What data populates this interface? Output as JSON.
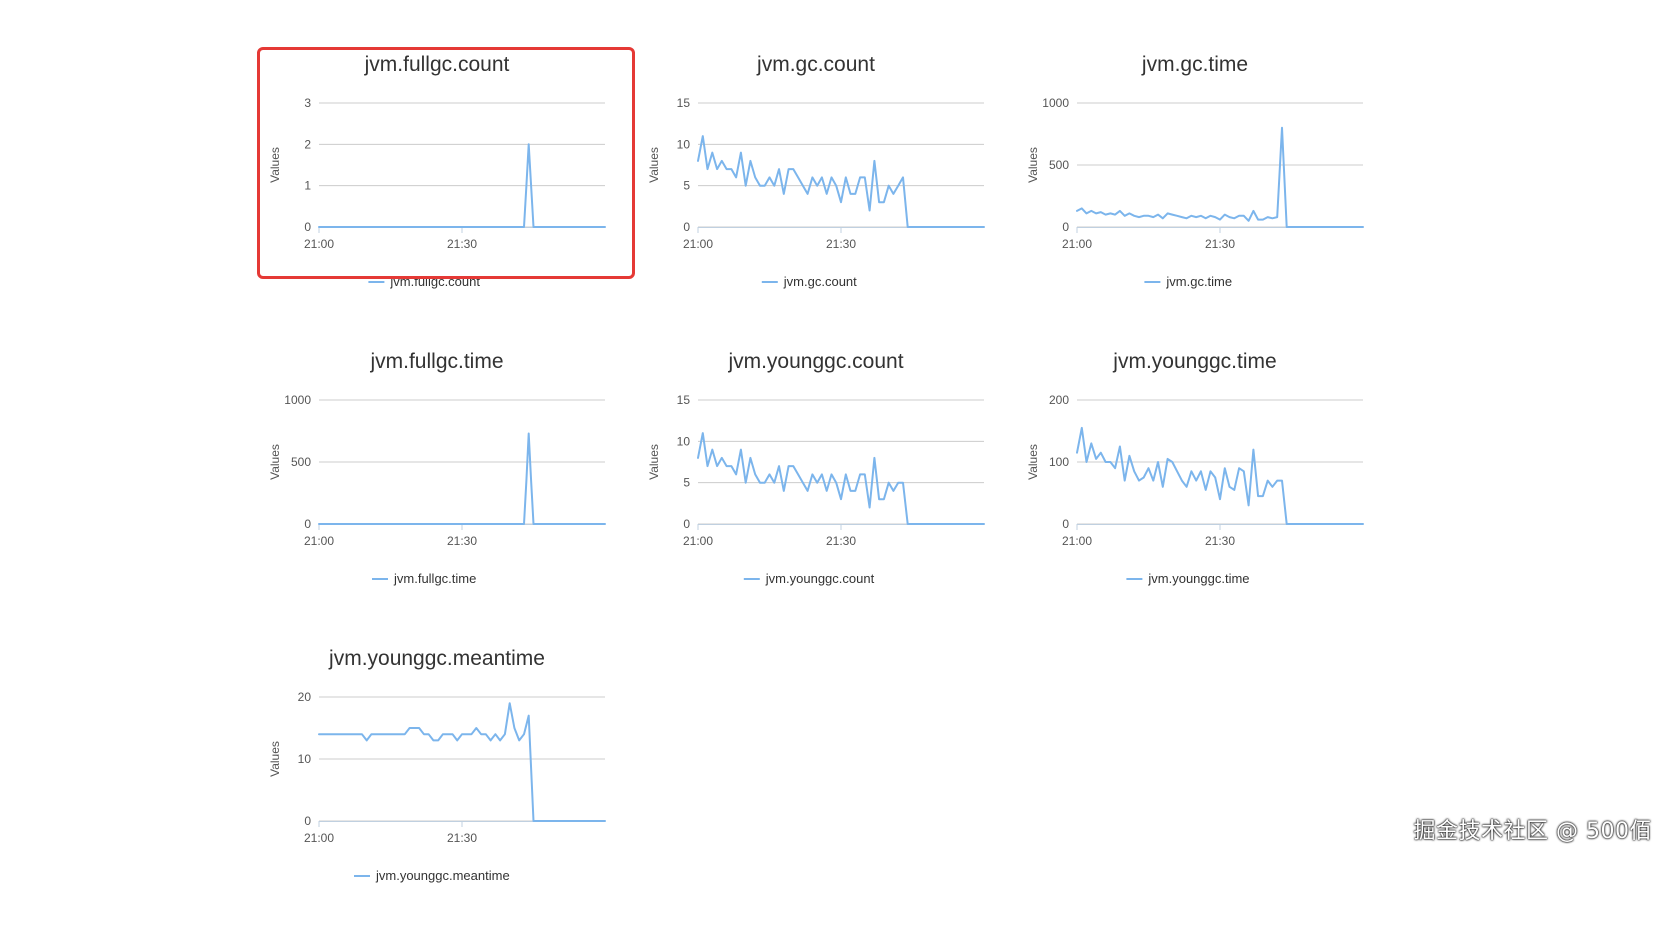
{
  "watermark": "掘金技术社区 @ 500佰",
  "colors": {
    "series": "#7cb5ec",
    "highlight": "#e53935",
    "grid": "#cccccc"
  },
  "chart_data": [
    {
      "type": "line",
      "name": "fullgc-count",
      "title": "jvm.fullgc.count",
      "ylabel": "Values",
      "ylim": [
        0,
        3
      ],
      "yticks": [
        0,
        1,
        2,
        3
      ],
      "xlim": [
        0,
        60
      ],
      "xticks": [
        {
          "x": 0,
          "label": "21:00"
        },
        {
          "x": 30,
          "label": "21:30"
        }
      ],
      "series": [
        {
          "name": "jvm.fullgc.count",
          "x": [
            0,
            1,
            2,
            3,
            4,
            5,
            6,
            7,
            8,
            9,
            10,
            11,
            12,
            13,
            14,
            15,
            16,
            17,
            18,
            19,
            20,
            21,
            22,
            23,
            24,
            25,
            26,
            27,
            28,
            29,
            30,
            31,
            32,
            33,
            34,
            35,
            36,
            37,
            38,
            39,
            40,
            41,
            42,
            43,
            43.5,
            44,
            44.5,
            45,
            46,
            47,
            48,
            49,
            50,
            51,
            52,
            53,
            54,
            55,
            56,
            57,
            58,
            59,
            60
          ],
          "values": [
            0,
            0,
            0,
            0,
            0,
            0,
            0,
            0,
            0,
            0,
            0,
            0,
            0,
            0,
            0,
            0,
            0,
            0,
            0,
            0,
            0,
            0,
            0,
            0,
            0,
            0,
            0,
            0,
            0,
            0,
            0,
            0,
            0,
            0,
            0,
            0,
            0,
            0,
            0,
            0,
            0,
            0,
            0,
            0,
            1,
            2,
            1,
            0,
            0,
            0,
            0,
            0,
            0,
            0,
            0,
            0,
            0,
            0,
            0,
            0,
            0,
            0,
            0
          ]
        }
      ]
    },
    {
      "type": "line",
      "name": "gc-count",
      "title": "jvm.gc.count",
      "ylabel": "Values",
      "ylim": [
        0,
        15
      ],
      "yticks": [
        0,
        5,
        10,
        15
      ],
      "xlim": [
        0,
        60
      ],
      "xticks": [
        {
          "x": 0,
          "label": "21:00"
        },
        {
          "x": 30,
          "label": "21:30"
        }
      ],
      "series": [
        {
          "name": "jvm.gc.count",
          "x": [
            0,
            1,
            2,
            3,
            4,
            5,
            6,
            7,
            8,
            9,
            10,
            11,
            12,
            13,
            14,
            15,
            16,
            17,
            18,
            19,
            20,
            21,
            22,
            23,
            24,
            25,
            26,
            27,
            28,
            29,
            30,
            31,
            32,
            33,
            34,
            35,
            36,
            37,
            38,
            39,
            40,
            41,
            42,
            43,
            44,
            45,
            46,
            47,
            48,
            49,
            50,
            51,
            52,
            53,
            54,
            55,
            56,
            57,
            58,
            59,
            60
          ],
          "values": [
            8,
            11,
            7,
            9,
            7,
            8,
            7,
            7,
            6,
            9,
            5,
            8,
            6,
            5,
            5,
            6,
            5,
            7,
            4,
            7,
            7,
            6,
            5,
            4,
            6,
            5,
            6,
            4,
            6,
            5,
            3,
            6,
            4,
            4,
            6,
            6,
            2,
            8,
            3,
            3,
            5,
            4,
            5,
            6,
            0,
            0,
            0,
            0,
            0,
            0,
            0,
            0,
            0,
            0,
            0,
            0,
            0,
            0,
            0,
            0,
            0
          ]
        }
      ]
    },
    {
      "type": "line",
      "name": "gc-time",
      "title": "jvm.gc.time",
      "ylabel": "Values",
      "ylim": [
        0,
        1000
      ],
      "yticks": [
        0,
        500,
        1000
      ],
      "xlim": [
        0,
        60
      ],
      "xticks": [
        {
          "x": 0,
          "label": "21:00"
        },
        {
          "x": 30,
          "label": "21:30"
        }
      ],
      "series": [
        {
          "name": "jvm.gc.time",
          "x": [
            0,
            1,
            2,
            3,
            4,
            5,
            6,
            7,
            8,
            9,
            10,
            11,
            12,
            13,
            14,
            15,
            16,
            17,
            18,
            19,
            20,
            21,
            22,
            23,
            24,
            25,
            26,
            27,
            28,
            29,
            30,
            31,
            32,
            33,
            34,
            35,
            36,
            37,
            38,
            39,
            40,
            41,
            42,
            43,
            44,
            45,
            46,
            47,
            48,
            49,
            50,
            51,
            52,
            53,
            54,
            55,
            56,
            57,
            58,
            59,
            60
          ],
          "values": [
            130,
            150,
            110,
            130,
            110,
            120,
            100,
            110,
            100,
            130,
            90,
            110,
            90,
            80,
            90,
            90,
            80,
            100,
            70,
            110,
            100,
            90,
            80,
            70,
            90,
            80,
            90,
            70,
            90,
            80,
            60,
            100,
            80,
            70,
            90,
            90,
            50,
            130,
            60,
            60,
            80,
            70,
            80,
            800,
            0,
            0,
            0,
            0,
            0,
            0,
            0,
            0,
            0,
            0,
            0,
            0,
            0,
            0,
            0,
            0,
            0
          ]
        }
      ]
    },
    {
      "type": "line",
      "name": "fullgc-time",
      "title": "jvm.fullgc.time",
      "ylabel": "Values",
      "ylim": [
        0,
        1000
      ],
      "yticks": [
        0,
        500,
        1000
      ],
      "xlim": [
        0,
        60
      ],
      "xticks": [
        {
          "x": 0,
          "label": "21:00"
        },
        {
          "x": 30,
          "label": "21:30"
        }
      ],
      "series": [
        {
          "name": "jvm.fullgc.time",
          "x": [
            0,
            1,
            2,
            3,
            4,
            5,
            6,
            7,
            8,
            9,
            10,
            11,
            12,
            13,
            14,
            15,
            16,
            17,
            18,
            19,
            20,
            21,
            22,
            23,
            24,
            25,
            26,
            27,
            28,
            29,
            30,
            31,
            32,
            33,
            34,
            35,
            36,
            37,
            38,
            39,
            40,
            41,
            42,
            43,
            43.5,
            44,
            44.5,
            45,
            46,
            47,
            48,
            49,
            50,
            51,
            52,
            53,
            54,
            55,
            56,
            57,
            58,
            59,
            60
          ],
          "values": [
            0,
            0,
            0,
            0,
            0,
            0,
            0,
            0,
            0,
            0,
            0,
            0,
            0,
            0,
            0,
            0,
            0,
            0,
            0,
            0,
            0,
            0,
            0,
            0,
            0,
            0,
            0,
            0,
            0,
            0,
            0,
            0,
            0,
            0,
            0,
            0,
            0,
            0,
            0,
            0,
            0,
            0,
            0,
            0,
            350,
            730,
            350,
            0,
            0,
            0,
            0,
            0,
            0,
            0,
            0,
            0,
            0,
            0,
            0,
            0,
            0,
            0,
            0
          ]
        }
      ]
    },
    {
      "type": "line",
      "name": "younggc-count",
      "title": "jvm.younggc.count",
      "ylabel": "Values",
      "ylim": [
        0,
        15
      ],
      "yticks": [
        0,
        5,
        10,
        15
      ],
      "xlim": [
        0,
        60
      ],
      "xticks": [
        {
          "x": 0,
          "label": "21:00"
        },
        {
          "x": 30,
          "label": "21:30"
        }
      ],
      "series": [
        {
          "name": "jvm.younggc.count",
          "x": [
            0,
            1,
            2,
            3,
            4,
            5,
            6,
            7,
            8,
            9,
            10,
            11,
            12,
            13,
            14,
            15,
            16,
            17,
            18,
            19,
            20,
            21,
            22,
            23,
            24,
            25,
            26,
            27,
            28,
            29,
            30,
            31,
            32,
            33,
            34,
            35,
            36,
            37,
            38,
            39,
            40,
            41,
            42,
            43,
            44,
            45,
            46,
            47,
            48,
            49,
            50,
            51,
            52,
            53,
            54,
            55,
            56,
            57,
            58,
            59,
            60
          ],
          "values": [
            8,
            11,
            7,
            9,
            7,
            8,
            7,
            7,
            6,
            9,
            5,
            8,
            6,
            5,
            5,
            6,
            5,
            7,
            4,
            7,
            7,
            6,
            5,
            4,
            6,
            5,
            6,
            4,
            6,
            5,
            3,
            6,
            4,
            4,
            6,
            6,
            2,
            8,
            3,
            3,
            5,
            4,
            5,
            5,
            0,
            0,
            0,
            0,
            0,
            0,
            0,
            0,
            0,
            0,
            0,
            0,
            0,
            0,
            0,
            0,
            0
          ]
        }
      ]
    },
    {
      "type": "line",
      "name": "younggc-time",
      "title": "jvm.younggc.time",
      "ylabel": "Values",
      "ylim": [
        0,
        200
      ],
      "yticks": [
        0,
        100,
        200
      ],
      "xlim": [
        0,
        60
      ],
      "xticks": [
        {
          "x": 0,
          "label": "21:00"
        },
        {
          "x": 30,
          "label": "21:30"
        }
      ],
      "series": [
        {
          "name": "jvm.younggc.time",
          "x": [
            0,
            1,
            2,
            3,
            4,
            5,
            6,
            7,
            8,
            9,
            10,
            11,
            12,
            13,
            14,
            15,
            16,
            17,
            18,
            19,
            20,
            21,
            22,
            23,
            24,
            25,
            26,
            27,
            28,
            29,
            30,
            31,
            32,
            33,
            34,
            35,
            36,
            37,
            38,
            39,
            40,
            41,
            42,
            43,
            44,
            45,
            46,
            47,
            48,
            49,
            50,
            51,
            52,
            53,
            54,
            55,
            56,
            57,
            58,
            59,
            60
          ],
          "values": [
            115,
            155,
            100,
            130,
            105,
            115,
            100,
            100,
            90,
            125,
            70,
            110,
            85,
            70,
            75,
            90,
            70,
            100,
            60,
            105,
            100,
            85,
            70,
            60,
            85,
            70,
            85,
            55,
            85,
            75,
            40,
            90,
            60,
            55,
            90,
            85,
            30,
            120,
            45,
            45,
            70,
            60,
            70,
            70,
            0,
            0,
            0,
            0,
            0,
            0,
            0,
            0,
            0,
            0,
            0,
            0,
            0,
            0,
            0,
            0,
            0
          ]
        }
      ]
    },
    {
      "type": "line",
      "name": "younggc-meantime",
      "title": "jvm.younggc.meantime",
      "ylabel": "Values",
      "ylim": [
        0,
        20
      ],
      "yticks": [
        0,
        10,
        20
      ],
      "xlim": [
        0,
        60
      ],
      "xticks": [
        {
          "x": 0,
          "label": "21:00"
        },
        {
          "x": 30,
          "label": "21:30"
        }
      ],
      "series": [
        {
          "name": "jvm.younggc.meantime",
          "x": [
            0,
            1,
            2,
            3,
            4,
            5,
            6,
            7,
            8,
            9,
            10,
            11,
            12,
            13,
            14,
            15,
            16,
            17,
            18,
            19,
            20,
            21,
            22,
            23,
            24,
            25,
            26,
            27,
            28,
            29,
            30,
            31,
            32,
            33,
            34,
            35,
            36,
            37,
            38,
            39,
            40,
            41,
            42,
            43,
            44,
            45,
            46,
            47,
            48,
            49,
            50,
            51,
            52,
            53,
            54,
            55,
            56,
            57,
            58,
            59,
            60
          ],
          "values": [
            14,
            14,
            14,
            14,
            14,
            14,
            14,
            14,
            14,
            14,
            13,
            14,
            14,
            14,
            14,
            14,
            14,
            14,
            14,
            15,
            15,
            15,
            14,
            14,
            13,
            13,
            14,
            14,
            14,
            13,
            14,
            14,
            14,
            15,
            14,
            14,
            13,
            14,
            13,
            14,
            19,
            15,
            13,
            14,
            17,
            0,
            0,
            0,
            0,
            0,
            0,
            0,
            0,
            0,
            0,
            0,
            0,
            0,
            0,
            0,
            0
          ]
        }
      ]
    }
  ]
}
